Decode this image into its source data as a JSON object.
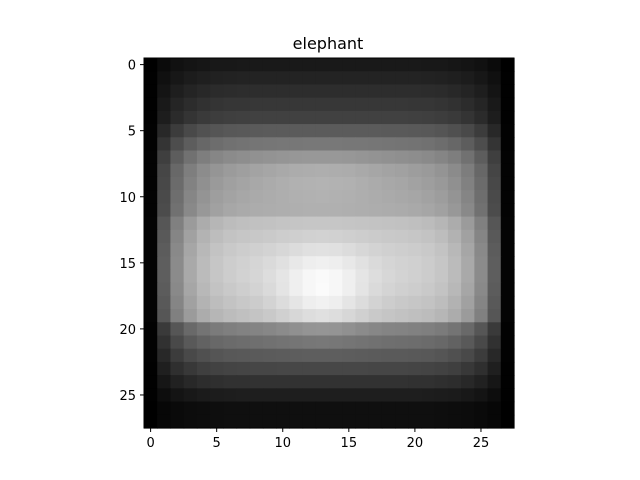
{
  "chart_data": {
    "type": "heatmap",
    "title": "elephant",
    "xlabel": "",
    "ylabel": "",
    "colormap": "gray",
    "grid": false,
    "rows": 28,
    "cols": 28,
    "xlim": [
      -0.5,
      27.5
    ],
    "ylim": [
      27.5,
      -0.5
    ],
    "xticks": [
      0,
      5,
      10,
      15,
      20,
      25
    ],
    "yticks": [
      0,
      5,
      10,
      15,
      20,
      25
    ],
    "value_range": [
      0,
      255
    ],
    "values_note_visible": false
  }
}
